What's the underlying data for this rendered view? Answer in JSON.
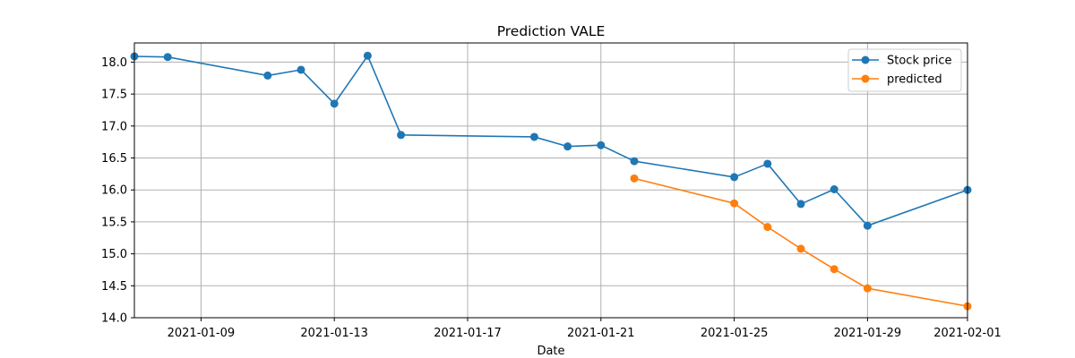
{
  "chart_data": {
    "type": "line",
    "title": "Prediction VALE",
    "xlabel": "Date",
    "ylabel": "",
    "xlim": [
      "2021-01-07",
      "2021-02-01"
    ],
    "ylim": [
      14.0,
      18.3
    ],
    "x_ticks": [
      "2021-01-09",
      "2021-01-13",
      "2021-01-17",
      "2021-01-21",
      "2021-01-25",
      "2021-01-29",
      "2021-02-01"
    ],
    "y_ticks": [
      "14.0",
      "14.5",
      "15.0",
      "15.5",
      "16.0",
      "16.5",
      "17.0",
      "17.5",
      "18.0"
    ],
    "grid": true,
    "legend_position": "top-right",
    "series": [
      {
        "name": "Stock price",
        "color": "#1f77b4",
        "marker": "circle",
        "points": [
          {
            "x": "2021-01-07",
            "y": 18.09
          },
          {
            "x": "2021-01-08",
            "y": 18.08
          },
          {
            "x": "2021-01-11",
            "y": 17.79
          },
          {
            "x": "2021-01-12",
            "y": 17.88
          },
          {
            "x": "2021-01-13",
            "y": 17.35
          },
          {
            "x": "2021-01-14",
            "y": 18.1
          },
          {
            "x": "2021-01-15",
            "y": 16.86
          },
          {
            "x": "2021-01-19",
            "y": 16.83
          },
          {
            "x": "2021-01-20",
            "y": 16.68
          },
          {
            "x": "2021-01-21",
            "y": 16.7
          },
          {
            "x": "2021-01-22",
            "y": 16.45
          },
          {
            "x": "2021-01-25",
            "y": 16.2
          },
          {
            "x": "2021-01-26",
            "y": 16.41
          },
          {
            "x": "2021-01-27",
            "y": 15.78
          },
          {
            "x": "2021-01-28",
            "y": 16.01
          },
          {
            "x": "2021-01-29",
            "y": 15.44
          },
          {
            "x": "2021-02-01",
            "y": 16.0
          }
        ]
      },
      {
        "name": "predicted",
        "color": "#ff7f0e",
        "marker": "circle",
        "points": [
          {
            "x": "2021-01-22",
            "y": 16.18
          },
          {
            "x": "2021-01-25",
            "y": 15.79
          },
          {
            "x": "2021-01-26",
            "y": 15.42
          },
          {
            "x": "2021-01-27",
            "y": 15.08
          },
          {
            "x": "2021-01-28",
            "y": 14.76
          },
          {
            "x": "2021-01-29",
            "y": 14.46
          },
          {
            "x": "2021-02-01",
            "y": 14.18
          }
        ]
      }
    ]
  }
}
